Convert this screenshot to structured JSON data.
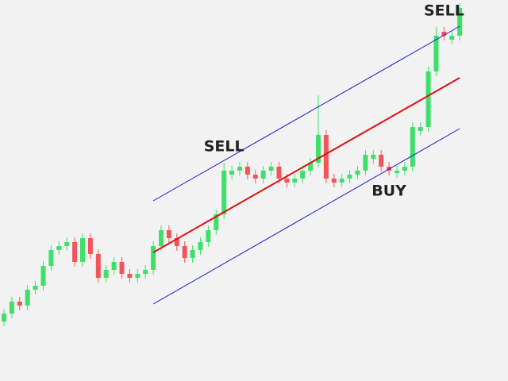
{
  "chart_data": {
    "type": "candlestick",
    "open": [
      75,
      85,
      100,
      95,
      115,
      120,
      145,
      165,
      170,
      175,
      150,
      180,
      160,
      130,
      140,
      150,
      135,
      130,
      135,
      140,
      170,
      190,
      180,
      170,
      155,
      165,
      175,
      190,
      210,
      260,
      265,
      270,
      260,
      255,
      265,
      270,
      255,
      250,
      255,
      265,
      275,
      310,
      255,
      250,
      255,
      260,
      265,
      280,
      285,
      270,
      262,
      265,
      270,
      315,
      320,
      390,
      440,
      430,
      435
    ],
    "high": [
      91,
      106,
      106,
      121,
      126,
      151,
      171,
      176,
      181,
      181,
      186,
      186,
      166,
      146,
      156,
      156,
      141,
      141,
      146,
      176,
      196,
      196,
      186,
      176,
      171,
      181,
      196,
      216,
      275,
      271,
      276,
      276,
      266,
      271,
      276,
      276,
      261,
      261,
      271,
      281,
      360,
      316,
      261,
      261,
      266,
      271,
      291,
      291,
      291,
      276,
      271,
      276,
      326,
      326,
      396,
      446,
      446,
      441,
      476
    ],
    "low": [
      69,
      79,
      89,
      89,
      109,
      114,
      139,
      159,
      164,
      144,
      144,
      154,
      124,
      124,
      134,
      129,
      124,
      124,
      129,
      134,
      164,
      174,
      164,
      149,
      149,
      159,
      169,
      184,
      204,
      254,
      259,
      254,
      249,
      249,
      259,
      249,
      244,
      244,
      249,
      259,
      269,
      249,
      244,
      244,
      249,
      254,
      259,
      274,
      264,
      259,
      256,
      259,
      264,
      309,
      314,
      384,
      429,
      424,
      429
    ],
    "close": [
      85,
      100,
      95,
      115,
      120,
      145,
      165,
      170,
      175,
      150,
      180,
      160,
      130,
      140,
      150,
      135,
      130,
      135,
      140,
      170,
      190,
      180,
      170,
      155,
      165,
      175,
      190,
      210,
      265,
      265,
      270,
      260,
      255,
      265,
      270,
      255,
      250,
      255,
      265,
      275,
      310,
      255,
      250,
      255,
      260,
      265,
      285,
      285,
      270,
      265,
      265,
      270,
      320,
      320,
      390,
      435,
      435,
      435,
      470
    ],
    "up_color": "#3ee06a",
    "down_color": "#f0555a",
    "ylim": [
      0,
      480
    ],
    "channel": {
      "from": 19,
      "to": 58,
      "upper": {
        "values": [
          227,
          447
        ],
        "color": "#1a1acc"
      },
      "middle": {
        "values": [
          162,
          382
        ],
        "color": "#dd1111"
      },
      "lower": {
        "values": [
          97,
          318
        ],
        "color": "#1a1acc"
      }
    },
    "annotations": [
      {
        "text": "SELL",
        "at": 28,
        "position": "above"
      },
      {
        "text": "SELL",
        "at": 56,
        "position": "above"
      },
      {
        "text": "BUY",
        "at": 49,
        "position": "below"
      }
    ]
  }
}
